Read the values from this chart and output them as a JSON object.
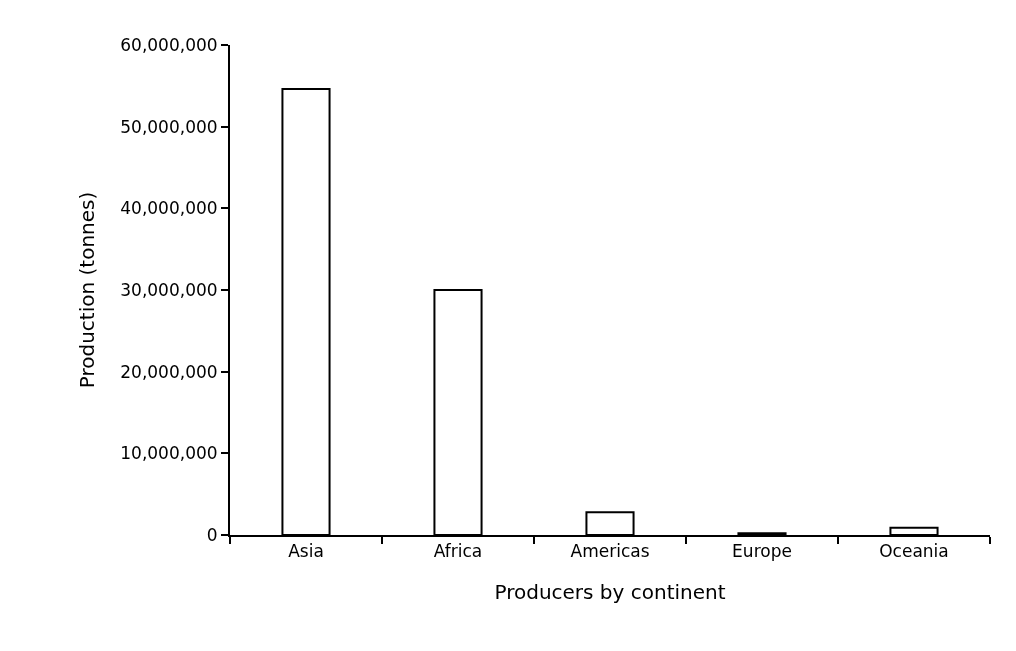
{
  "chart_data": {
    "type": "bar",
    "xlabel": "Producers by continent",
    "ylabel": "Production (tonnes)",
    "categories": [
      "Asia",
      "Africa",
      "Americas",
      "Europe",
      "Oceania"
    ],
    "values": [
      54600000,
      30000000,
      2800000,
      200000,
      900000
    ],
    "color": "#ffffff",
    "ylim": [
      0,
      60000000
    ],
    "yticks": [
      {
        "value": 0,
        "label": "0"
      },
      {
        "value": 10000000,
        "label": "10,000,000"
      },
      {
        "value": 20000000,
        "label": "20,000,000"
      },
      {
        "value": 30000000,
        "label": "30,000,000"
      },
      {
        "value": 40000000,
        "label": "40,000,000"
      },
      {
        "value": 50000000,
        "label": "50,000,000"
      },
      {
        "value": 60000000,
        "label": "60,000,000"
      }
    ]
  }
}
